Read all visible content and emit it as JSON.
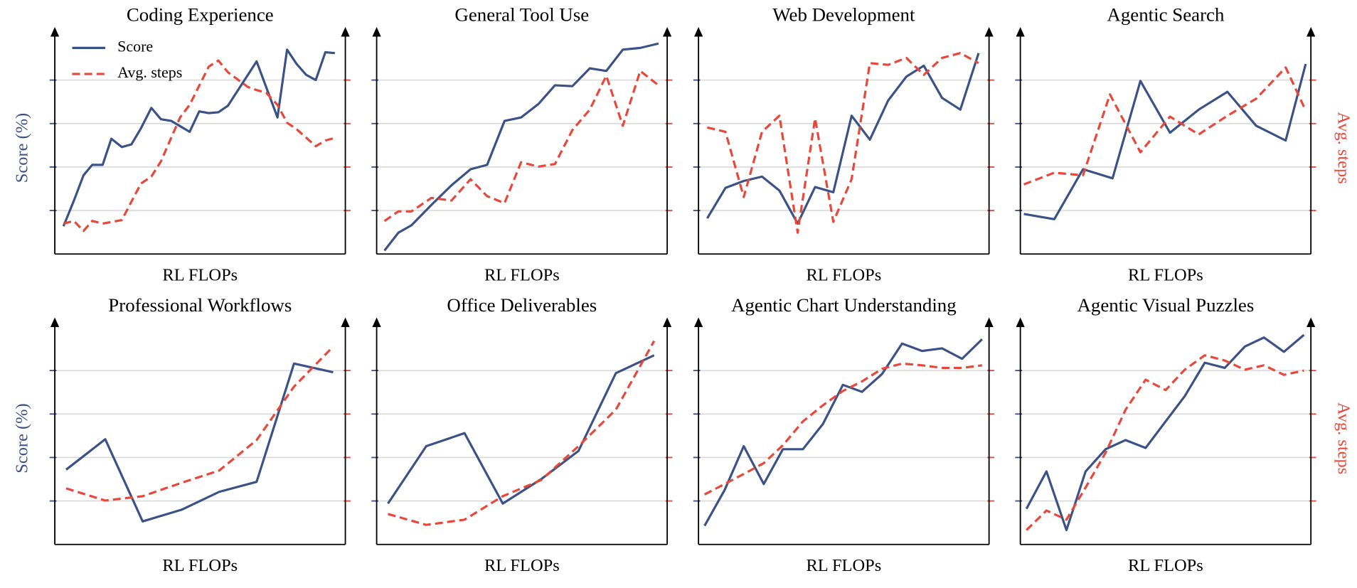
{
  "chart_data": [
    {
      "type": "line",
      "title": "Coding Experience",
      "xlabel": "RL FLOPs",
      "ylabel": "Score (%)",
      "legend": "upper left",
      "grid": true,
      "xlim": [
        0,
        334
      ],
      "ylim": [
        0,
        5
      ],
      "yticks": [
        1,
        2,
        3,
        4
      ],
      "y2lim": [
        0,
        5
      ],
      "y2ticks": [
        1,
        2,
        3,
        4
      ],
      "series": [
        {
          "name": "Score",
          "color": "#3b5287",
          "linestyle": "solid",
          "x": [
            10,
            22,
            33,
            43,
            55,
            65,
            77,
            88,
            99,
            111,
            122,
            134,
            155,
            166,
            177,
            188,
            199,
            232,
            256,
            267,
            278,
            289,
            300,
            311,
            322
          ],
          "values": [
            0.64,
            1.23,
            1.81,
            2.05,
            2.05,
            2.65,
            2.46,
            2.52,
            2.89,
            3.36,
            3.1,
            3.06,
            2.81,
            3.28,
            3.24,
            3.26,
            3.41,
            4.43,
            3.14,
            4.7,
            4.37,
            4.12,
            4.0,
            4.64,
            4.62
          ]
        },
        {
          "name": "Avg. steps",
          "color": "#e8473a",
          "linestyle": "dashed",
          "axis": "y2",
          "x": [
            10,
            22,
            33,
            43,
            55,
            77,
            99,
            111,
            122,
            144,
            155,
            177,
            188,
            199,
            222,
            232,
            243,
            256,
            267,
            278,
            300,
            311,
            322
          ],
          "values": [
            0.7,
            0.76,
            0.53,
            0.76,
            0.7,
            0.78,
            1.62,
            1.78,
            2.13,
            3.14,
            3.43,
            4.31,
            4.45,
            4.18,
            3.84,
            3.77,
            3.71,
            3.43,
            3.02,
            2.87,
            2.48,
            2.61,
            2.67
          ]
        }
      ]
    },
    {
      "type": "line",
      "title": "General Tool Use",
      "xlabel": "RL FLOPs",
      "grid": true,
      "xlim": [
        0,
        334
      ],
      "ylim": [
        0,
        5
      ],
      "yticks": [
        1,
        2,
        3,
        4
      ],
      "y2lim": [
        0,
        5
      ],
      "y2ticks": [
        1,
        2,
        3,
        4
      ],
      "series": [
        {
          "color": "#3b5287",
          "linestyle": "solid",
          "x": [
            9,
            25,
            40,
            63,
            86,
            108,
            127,
            147,
            166,
            186,
            205,
            225,
            245,
            264,
            283,
            303,
            324
          ],
          "values": [
            0.08,
            0.49,
            0.66,
            1.13,
            1.58,
            1.95,
            2.05,
            3.06,
            3.14,
            3.45,
            3.88,
            3.86,
            4.27,
            4.21,
            4.7,
            4.74,
            4.84
          ]
        },
        {
          "color": "#e8473a",
          "linestyle": "dashed",
          "axis": "y2",
          "x": [
            9,
            25,
            40,
            63,
            86,
            108,
            127,
            147,
            166,
            186,
            205,
            225,
            245,
            264,
            283,
            303,
            324
          ],
          "values": [
            0.76,
            0.98,
            0.98,
            1.29,
            1.23,
            1.72,
            1.33,
            1.17,
            2.11,
            2.01,
            2.07,
            2.85,
            3.32,
            4.1,
            2.95,
            4.21,
            3.88
          ]
        }
      ]
    },
    {
      "type": "line",
      "title": "Web Development",
      "xlabel": "RL FLOPs",
      "grid": true,
      "xlim": [
        0,
        334
      ],
      "ylim": [
        0,
        5
      ],
      "yticks": [
        1,
        2,
        3,
        4
      ],
      "y2lim": [
        0,
        5
      ],
      "y2ticks": [
        1,
        2,
        3,
        4
      ],
      "series": [
        {
          "color": "#3b5287",
          "linestyle": "solid",
          "x": [
            10,
            31,
            52,
            73,
            93,
            114,
            134,
            155,
            176,
            197,
            218,
            239,
            259,
            280,
            301,
            322
          ],
          "values": [
            0.82,
            1.52,
            1.68,
            1.78,
            1.46,
            0.7,
            1.54,
            1.42,
            3.18,
            2.63,
            3.53,
            4.08,
            4.33,
            3.59,
            3.32,
            4.62
          ]
        },
        {
          "color": "#e8473a",
          "linestyle": "dashed",
          "axis": "y2",
          "x": [
            10,
            31,
            52,
            73,
            93,
            114,
            134,
            155,
            176,
            197,
            218,
            239,
            259,
            280,
            301,
            322
          ],
          "values": [
            2.91,
            2.81,
            1.31,
            2.81,
            3.18,
            0.49,
            3.12,
            0.74,
            1.72,
            4.39,
            4.35,
            4.51,
            4.12,
            4.51,
            4.62,
            4.39
          ]
        }
      ]
    },
    {
      "type": "line",
      "title": "Agentic Search",
      "xlabel": "RL FLOPs",
      "y2label": "Avg. steps",
      "grid": true,
      "xlim": [
        0,
        334
      ],
      "ylim": [
        0,
        5
      ],
      "yticks": [
        1,
        2,
        3,
        4
      ],
      "y2lim": [
        0,
        5
      ],
      "y2ticks": [
        1,
        2,
        3,
        4
      ],
      "series": [
        {
          "color": "#3b5287",
          "linestyle": "solid",
          "x": [
            4,
            39,
            72,
            106,
            138,
            172,
            205,
            238,
            271,
            305,
            328
          ],
          "values": [
            0.92,
            0.8,
            1.95,
            1.74,
            3.98,
            2.79,
            3.32,
            3.73,
            2.95,
            2.61,
            4.37
          ]
        },
        {
          "color": "#e8473a",
          "linestyle": "dashed",
          "axis": "y2",
          "x": [
            4,
            39,
            72,
            103,
            138,
            172,
            205,
            238,
            271,
            305,
            328
          ],
          "values": [
            1.6,
            1.87,
            1.81,
            3.67,
            2.34,
            3.16,
            2.75,
            3.18,
            3.57,
            4.29,
            3.3
          ]
        }
      ]
    },
    {
      "type": "line",
      "title": "Professional Workflows",
      "xlabel": "RL FLOPs",
      "ylabel": "Score (%)",
      "grid": true,
      "xlim": [
        0,
        334
      ],
      "ylim": [
        0,
        5
      ],
      "yticks": [
        1,
        2,
        3,
        4
      ],
      "y2lim": [
        0,
        5
      ],
      "y2ticks": [
        1,
        2,
        3,
        4
      ],
      "series": [
        {
          "color": "#3b5287",
          "linestyle": "solid",
          "x": [
            13,
            58,
            101,
            146,
            189,
            232,
            275,
            320
          ],
          "values": [
            1.72,
            2.42,
            0.53,
            0.8,
            1.21,
            1.44,
            4.16,
            3.96
          ]
        },
        {
          "color": "#e8473a",
          "linestyle": "dashed",
          "axis": "y2",
          "x": [
            13,
            58,
            101,
            146,
            189,
            232,
            275,
            320
          ],
          "values": [
            1.29,
            1.01,
            1.11,
            1.42,
            1.7,
            2.4,
            3.63,
            4.55
          ]
        }
      ]
    },
    {
      "type": "line",
      "title": "Office Deliverables",
      "xlabel": "RL FLOPs",
      "grid": true,
      "xlim": [
        0,
        334
      ],
      "ylim": [
        0,
        5
      ],
      "yticks": [
        1,
        2,
        3,
        4
      ],
      "y2lim": [
        0,
        5
      ],
      "y2ticks": [
        1,
        2,
        3,
        4
      ],
      "series": [
        {
          "color": "#3b5287",
          "linestyle": "solid",
          "x": [
            13,
            57,
            101,
            145,
            189,
            232,
            275,
            319
          ],
          "values": [
            0.94,
            2.26,
            2.56,
            0.94,
            1.5,
            2.15,
            3.94,
            4.35
          ]
        },
        {
          "color": "#e8473a",
          "linestyle": "dashed",
          "axis": "y2",
          "x": [
            13,
            57,
            101,
            145,
            189,
            232,
            275,
            319
          ],
          "values": [
            0.7,
            0.45,
            0.57,
            1.11,
            1.48,
            2.26,
            3.1,
            4.68
          ]
        }
      ]
    },
    {
      "type": "line",
      "title": "Agentic Chart Understanding",
      "xlabel": "RL FLOPs",
      "grid": true,
      "xlim": [
        0,
        334
      ],
      "ylim": [
        0,
        5
      ],
      "yticks": [
        1,
        2,
        3,
        4
      ],
      "y2lim": [
        0,
        5
      ],
      "y2ticks": [
        1,
        2,
        3,
        4
      ],
      "series": [
        {
          "color": "#3b5287",
          "linestyle": "solid",
          "x": [
            7,
            30,
            52,
            75,
            97,
            120,
            143,
            166,
            188,
            211,
            234,
            257,
            280,
            303,
            326
          ],
          "values": [
            0.43,
            1.25,
            2.26,
            1.39,
            2.19,
            2.19,
            2.77,
            3.67,
            3.51,
            3.92,
            4.62,
            4.45,
            4.51,
            4.27,
            4.72
          ]
        },
        {
          "color": "#e8473a",
          "linestyle": "dashed",
          "axis": "y2",
          "x": [
            7,
            30,
            52,
            75,
            97,
            120,
            143,
            166,
            188,
            211,
            234,
            257,
            280,
            303,
            326
          ],
          "values": [
            1.15,
            1.39,
            1.62,
            1.87,
            2.28,
            2.83,
            3.2,
            3.53,
            3.75,
            4.04,
            4.16,
            4.12,
            4.06,
            4.06,
            4.12
          ]
        }
      ]
    },
    {
      "type": "line",
      "title": "Agentic Visual Puzzles",
      "xlabel": "RL FLOPs",
      "y2label": "Avg. steps",
      "grid": true,
      "xlim": [
        0,
        334
      ],
      "ylim": [
        0,
        5
      ],
      "yticks": [
        1,
        2,
        3,
        4
      ],
      "y2lim": [
        0,
        5
      ],
      "y2ticks": [
        1,
        2,
        3,
        4
      ],
      "series": [
        {
          "color": "#3b5287",
          "linestyle": "solid",
          "x": [
            7,
            30,
            53,
            75,
            98,
            121,
            144,
            167,
            189,
            212,
            235,
            258,
            280,
            303,
            326
          ],
          "values": [
            0.82,
            1.68,
            0.33,
            1.68,
            2.19,
            2.4,
            2.22,
            2.83,
            3.41,
            4.18,
            4.06,
            4.55,
            4.76,
            4.43,
            4.82
          ]
        },
        {
          "color": "#e8473a",
          "linestyle": "dashed",
          "axis": "y2",
          "x": [
            7,
            30,
            53,
            75,
            98,
            121,
            144,
            167,
            189,
            212,
            235,
            258,
            280,
            303,
            326
          ],
          "values": [
            0.33,
            0.78,
            0.57,
            1.31,
            2.11,
            3.1,
            3.79,
            3.55,
            4.02,
            4.35,
            4.23,
            4.02,
            4.12,
            3.9,
            4.0
          ]
        }
      ]
    }
  ]
}
